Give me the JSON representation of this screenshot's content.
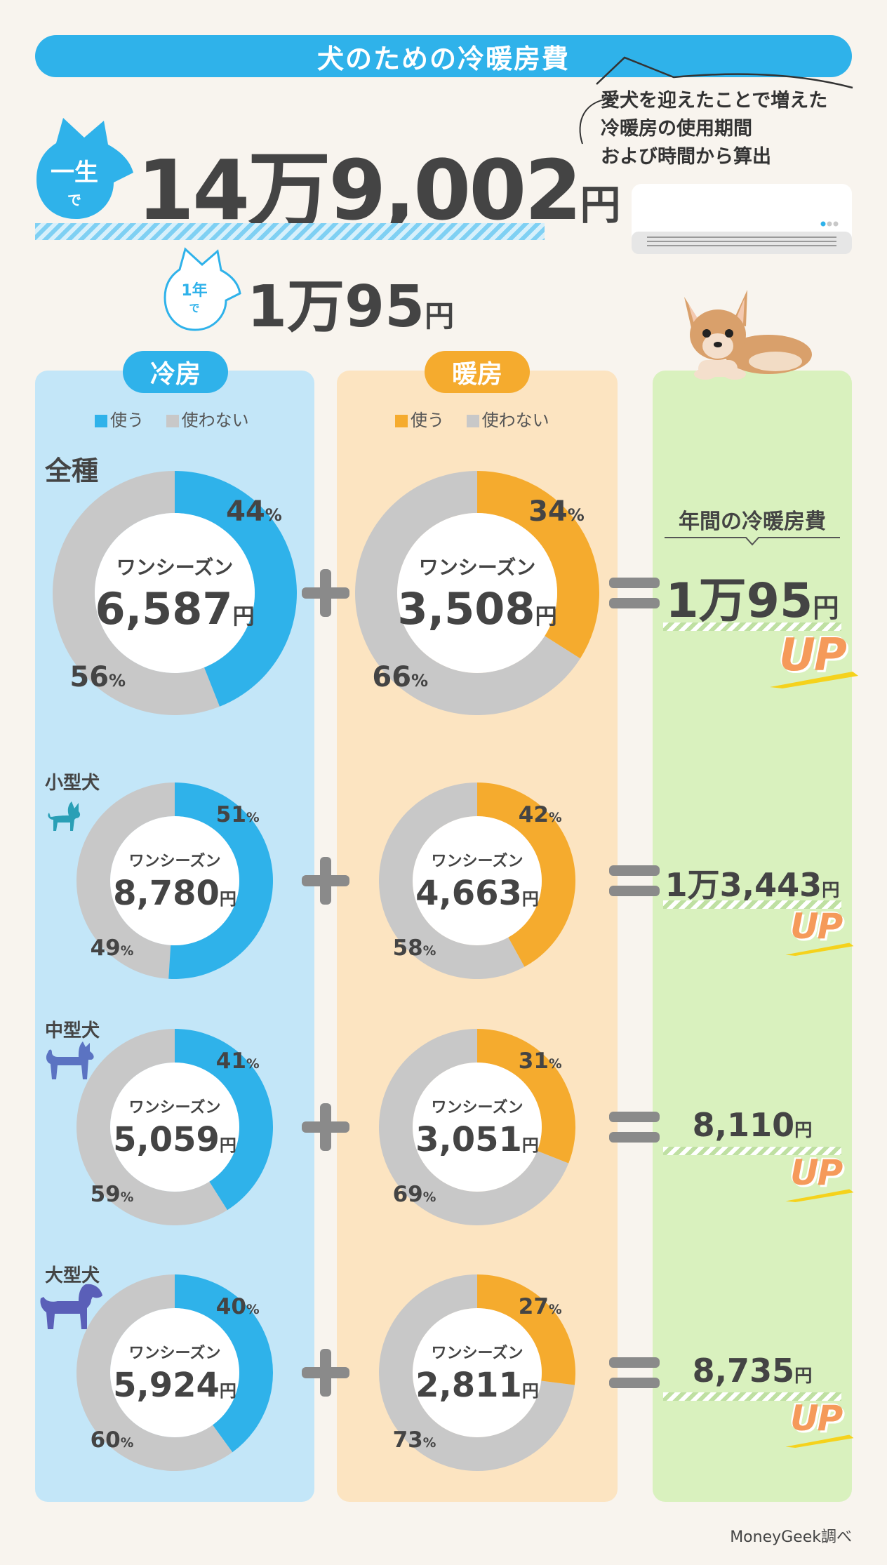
{
  "title": "犬のための冷暖房費",
  "note": "愛犬を迎えたことで増えた冷暖房の使用期間および時間から算出",
  "note_lines": [
    "愛犬を迎えたことで増えた",
    "冷暖房の使用期間",
    "および時間から算出"
  ],
  "lifetime": {
    "label_top": "一生",
    "label_bottom": "で",
    "value": "14万9,002",
    "unit": "円"
  },
  "annual": {
    "label_top": "1年",
    "label_bottom": "で",
    "value": "1万95",
    "unit": "円"
  },
  "columns": {
    "cooling": "冷房",
    "heating": "暖房",
    "total_header": "年間の冷暖房費"
  },
  "legend": {
    "use": "使う",
    "not_use": "使わない"
  },
  "season_label": "ワンシーズン",
  "yen": "円",
  "up_label": "UP",
  "colors": {
    "cooling": "#2fb2ea",
    "heating": "#f5ab2e",
    "not_use": "#c8c8c8",
    "cool_bg": "#c3e6f8",
    "heat_bg": "#fce4c1",
    "sum_bg": "#d9f1be"
  },
  "source": "MoneyGeek調べ",
  "chart_data": {
    "type": "pie",
    "title": "犬のための冷暖房費",
    "categories": [
      "全種",
      "小型犬",
      "中型犬",
      "大型犬"
    ],
    "series": [
      {
        "name": "冷房",
        "use_pct": [
          44,
          51,
          41,
          40
        ],
        "not_use_pct": [
          56,
          49,
          59,
          60
        ],
        "season_cost": [
          "6,587",
          "8,780",
          "5,059",
          "5,924"
        ]
      },
      {
        "name": "暖房",
        "use_pct": [
          34,
          42,
          31,
          27
        ],
        "not_use_pct": [
          66,
          58,
          69,
          73
        ],
        "season_cost": [
          "3,508",
          "4,663",
          "3,051",
          "2,811"
        ]
      }
    ],
    "annual_total": [
      "1万95",
      "1万3,443",
      "8,110",
      "8,735"
    ]
  }
}
